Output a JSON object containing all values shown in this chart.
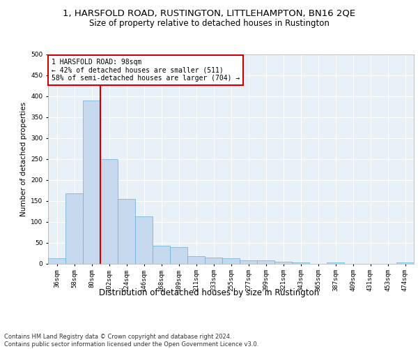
{
  "title_line1": "1, HARSFOLD ROAD, RUSTINGTON, LITTLEHAMPTON, BN16 2QE",
  "title_line2": "Size of property relative to detached houses in Rustington",
  "xlabel": "Distribution of detached houses by size in Rustington",
  "ylabel": "Number of detached properties",
  "categories": [
    "36sqm",
    "58sqm",
    "80sqm",
    "102sqm",
    "124sqm",
    "146sqm",
    "168sqm",
    "189sqm",
    "211sqm",
    "233sqm",
    "255sqm",
    "277sqm",
    "299sqm",
    "321sqm",
    "343sqm",
    "365sqm",
    "387sqm",
    "409sqm",
    "431sqm",
    "453sqm",
    "474sqm"
  ],
  "values": [
    12,
    167,
    390,
    250,
    155,
    113,
    42,
    40,
    18,
    15,
    13,
    8,
    7,
    5,
    3,
    0,
    3,
    0,
    0,
    0,
    3
  ],
  "bar_color": "#c5d8ed",
  "bar_edge_color": "#6aaed6",
  "vline_x_index": 2,
  "vline_color": "#cc0000",
  "annotation_text": "1 HARSFOLD ROAD: 98sqm\n← 42% of detached houses are smaller (511)\n58% of semi-detached houses are larger (704) →",
  "annotation_box_color": "#ffffff",
  "annotation_box_edge_color": "#cc0000",
  "ylim": [
    0,
    500
  ],
  "yticks": [
    0,
    50,
    100,
    150,
    200,
    250,
    300,
    350,
    400,
    450,
    500
  ],
  "footer": "Contains HM Land Registry data © Crown copyright and database right 2024.\nContains public sector information licensed under the Open Government Licence v3.0.",
  "background_color": "#e8f0f8",
  "grid_color": "#ffffff",
  "title_fontsize": 9.5,
  "subtitle_fontsize": 8.5,
  "annot_fontsize": 7,
  "ylabel_fontsize": 7.5,
  "xlabel_fontsize": 8.5,
  "tick_fontsize": 6.5,
  "footer_fontsize": 6.0
}
